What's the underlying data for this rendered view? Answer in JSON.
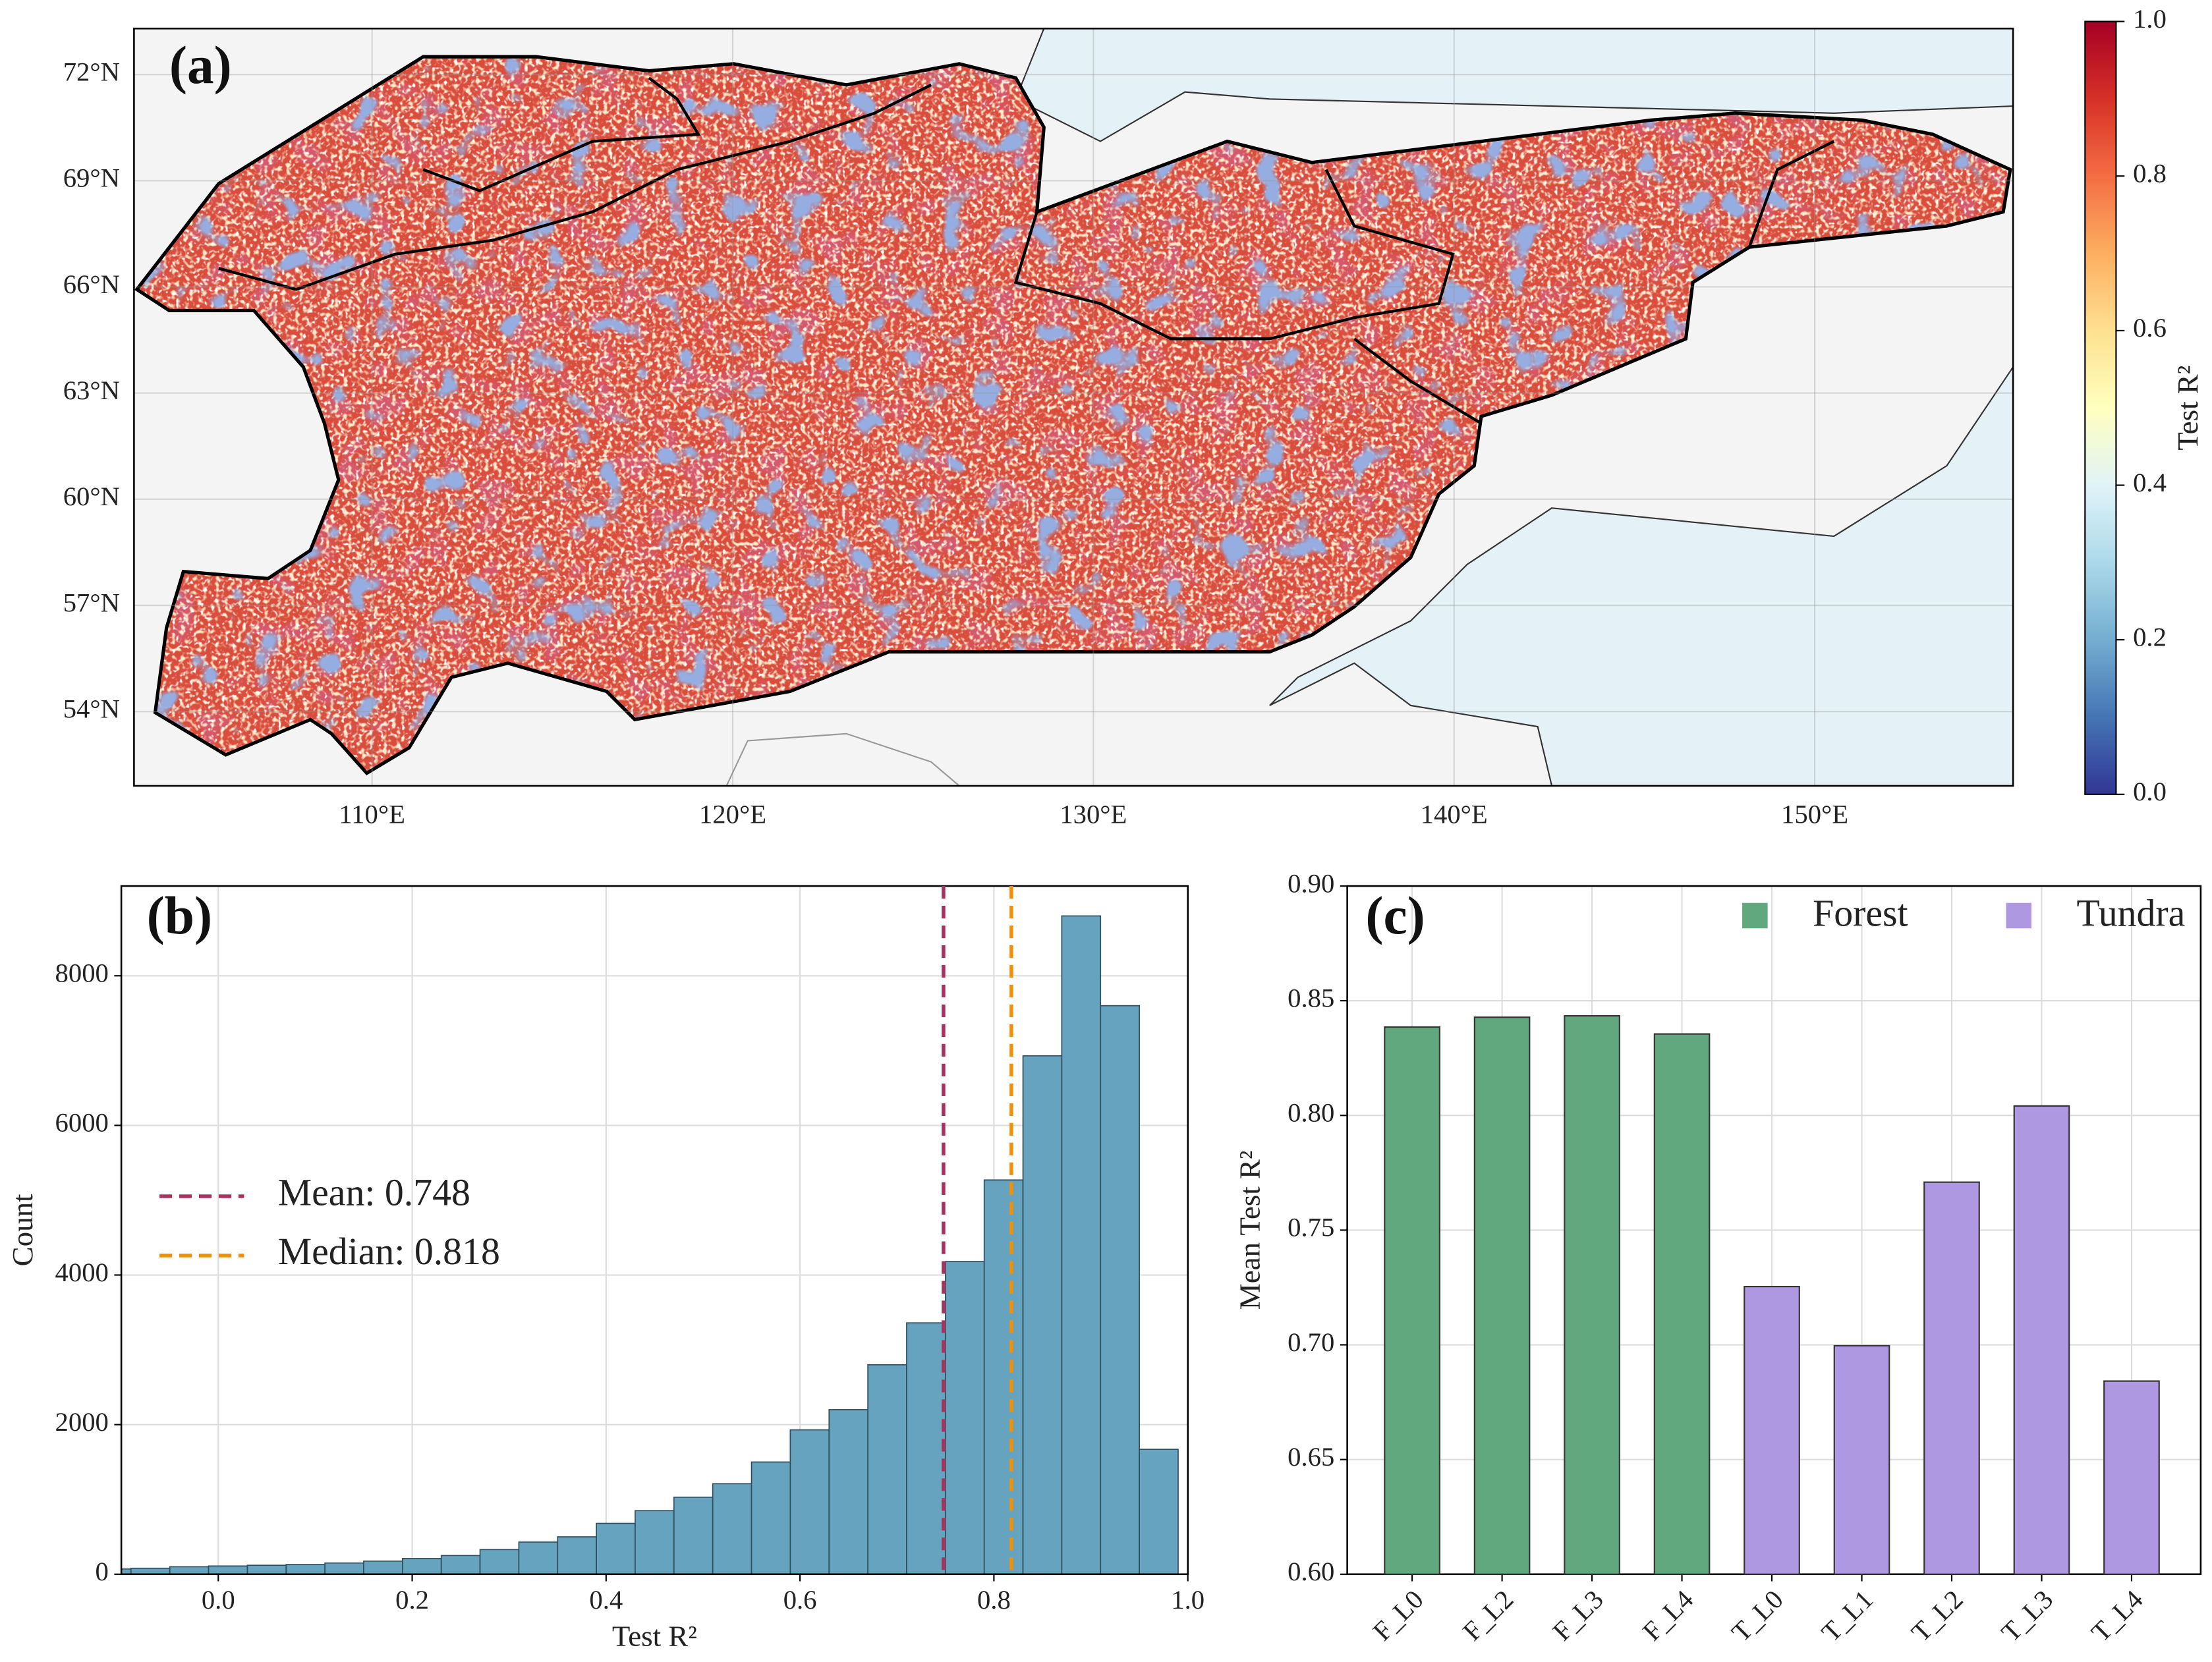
{
  "chart_data": [
    {
      "type": "map",
      "title": "(a)",
      "xlim": [
        103.4,
        155.5
      ],
      "ylim": [
        51.9,
        73.3
      ],
      "xticks": [
        {
          "value": 110,
          "label": "110°E"
        },
        {
          "value": 120,
          "label": "120°E"
        },
        {
          "value": 130,
          "label": "130°E"
        },
        {
          "value": 140,
          "label": "140°E"
        },
        {
          "value": 150,
          "label": "150°E"
        }
      ],
      "yticks": [
        {
          "value": 54,
          "label": "54°N"
        },
        {
          "value": 57,
          "label": "57°N"
        },
        {
          "value": 60,
          "label": "60°N"
        },
        {
          "value": 63,
          "label": "63°N"
        },
        {
          "value": 66,
          "label": "66°N"
        },
        {
          "value": 69,
          "label": "69°N"
        },
        {
          "value": 72,
          "label": "72°N"
        }
      ],
      "grid": true,
      "colorbar": {
        "label": "Test R²",
        "lim": [
          0,
          1
        ],
        "ticks": [
          {
            "value": 0,
            "label": "0.0"
          },
          {
            "value": 0.2,
            "label": "0.2"
          },
          {
            "value": 0.4,
            "label": "0.4"
          },
          {
            "value": 0.6,
            "label": "0.6"
          },
          {
            "value": 0.8,
            "label": "0.8"
          },
          {
            "value": 1,
            "label": "1.0"
          }
        ]
      }
    },
    {
      "type": "histogram",
      "title": "(b)",
      "xlabel": "Test R²",
      "ylabel": "Count",
      "color": "#66a3bf",
      "bins": [
        -0.13,
        -0.09,
        -0.05,
        -0.01,
        0.03,
        0.07,
        0.11,
        0.15,
        0.19,
        0.23,
        0.27,
        0.31,
        0.35,
        0.39,
        0.43,
        0.47,
        0.51,
        0.55,
        0.59,
        0.63,
        0.67,
        0.71,
        0.75,
        0.79,
        0.83,
        0.87,
        0.91,
        0.95,
        0.99
      ],
      "values": [
        70,
        80,
        100,
        110,
        120,
        130,
        150,
        175,
        210,
        250,
        330,
        430,
        500,
        680,
        850,
        1030,
        1210,
        1500,
        1930,
        2200,
        2800,
        3360,
        4180,
        5270,
        6930,
        8800,
        7600,
        1670
      ],
      "xlim": [
        -0.1,
        1.0
      ],
      "ylim": [
        0,
        9200
      ],
      "xticks": [
        {
          "value": 0,
          "label": "0.0"
        },
        {
          "value": 0.2,
          "label": "0.2"
        },
        {
          "value": 0.4,
          "label": "0.4"
        },
        {
          "value": 0.6,
          "label": "0.6"
        },
        {
          "value": 0.8,
          "label": "0.8"
        },
        {
          "value": 1,
          "label": "1.0"
        }
      ],
      "yticks": [
        0,
        2000,
        4000,
        6000,
        8000
      ],
      "grid": true,
      "vlines": [
        {
          "name": "Mean: 0.748",
          "value": 0.748,
          "color": "#a8325e"
        },
        {
          "name": "Median: 0.818",
          "value": 0.818,
          "color": "#f0900a"
        }
      ]
    },
    {
      "type": "bar",
      "title": "(c)",
      "ylabel": "Mean Test R²",
      "categories": [
        "F_L0",
        "F_L2",
        "F_L3",
        "F_L4",
        "T_L0",
        "T_L1",
        "T_L2",
        "T_L3",
        "T_L4"
      ],
      "series": [
        {
          "name": "Forest",
          "color": "#62a87e",
          "values": [
            0.8385,
            0.8428,
            0.8434,
            0.8355,
            null,
            null,
            null,
            null,
            null
          ]
        },
        {
          "name": "Tundra",
          "color": "#ae98e2",
          "values": [
            null,
            null,
            null,
            null,
            0.7254,
            0.6996,
            0.7709,
            0.8041,
            0.6842
          ]
        }
      ],
      "ylim": [
        0.6,
        0.9
      ],
      "yticks": [
        {
          "value": 0.6,
          "label": "0.60"
        },
        {
          "value": 0.65,
          "label": "0.65"
        },
        {
          "value": 0.7,
          "label": "0.70"
        },
        {
          "value": 0.75,
          "label": "0.75"
        },
        {
          "value": 0.8,
          "label": "0.80"
        },
        {
          "value": 0.85,
          "label": "0.85"
        },
        {
          "value": 0.9,
          "label": "0.90"
        }
      ],
      "grid": true
    }
  ]
}
